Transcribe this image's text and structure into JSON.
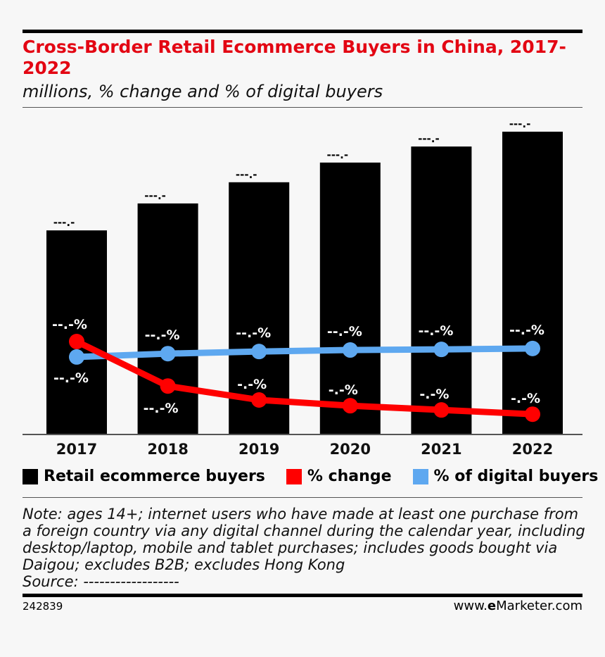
{
  "chart_data": {
    "type": "bar",
    "title": "Cross-Border Retail Ecommerce Buyers in China, 2017-2022",
    "subtitle": "millions, % change and % of digital buyers",
    "categories": [
      "2017",
      "2018",
      "2019",
      "2020",
      "2021",
      "2022"
    ],
    "series": [
      {
        "name": "Retail ecommerce buyers",
        "type": "bar",
        "color": "#000000",
        "values": [
          67.4,
          76.3,
          83.3,
          89.8,
          95.1,
          100
        ],
        "labels": [
          "---.-",
          "---.-",
          "---.-",
          "---.-",
          "---.-",
          "---.-"
        ]
      },
      {
        "name": "% change",
        "type": "line",
        "color": "#ff0000",
        "values": [
          30.7,
          16.0,
          11.4,
          9.5,
          8.1,
          6.7
        ],
        "labels": [
          "--.-%",
          "--.-%",
          "-.-%",
          "-.-%",
          "-.-%",
          "-.-%"
        ]
      },
      {
        "name": "% of digital buyers",
        "type": "line",
        "color": "#5ea8f0",
        "values": [
          25.6,
          26.7,
          27.4,
          27.9,
          28.1,
          28.4
        ],
        "labels": [
          "--.-%",
          "--.-%",
          "--.-%",
          "--.-%",
          "--.-%",
          "--.-%"
        ]
      }
    ],
    "grid": false,
    "legend": "bottom"
  },
  "note": "Note: ages 14+; internet users who have made at least one purchase from a foreign country via any digital channel during the calendar year, including desktop/laptop, mobile and tablet purchases; includes goods bought via Daigou; excludes B2B; excludes Hong Kong",
  "source": "Source: ------------------",
  "footer": {
    "id": "242839",
    "brand_prefix": "www.",
    "brand_e": "e",
    "brand_name": "Marketer",
    "brand_suffix": ".com"
  }
}
